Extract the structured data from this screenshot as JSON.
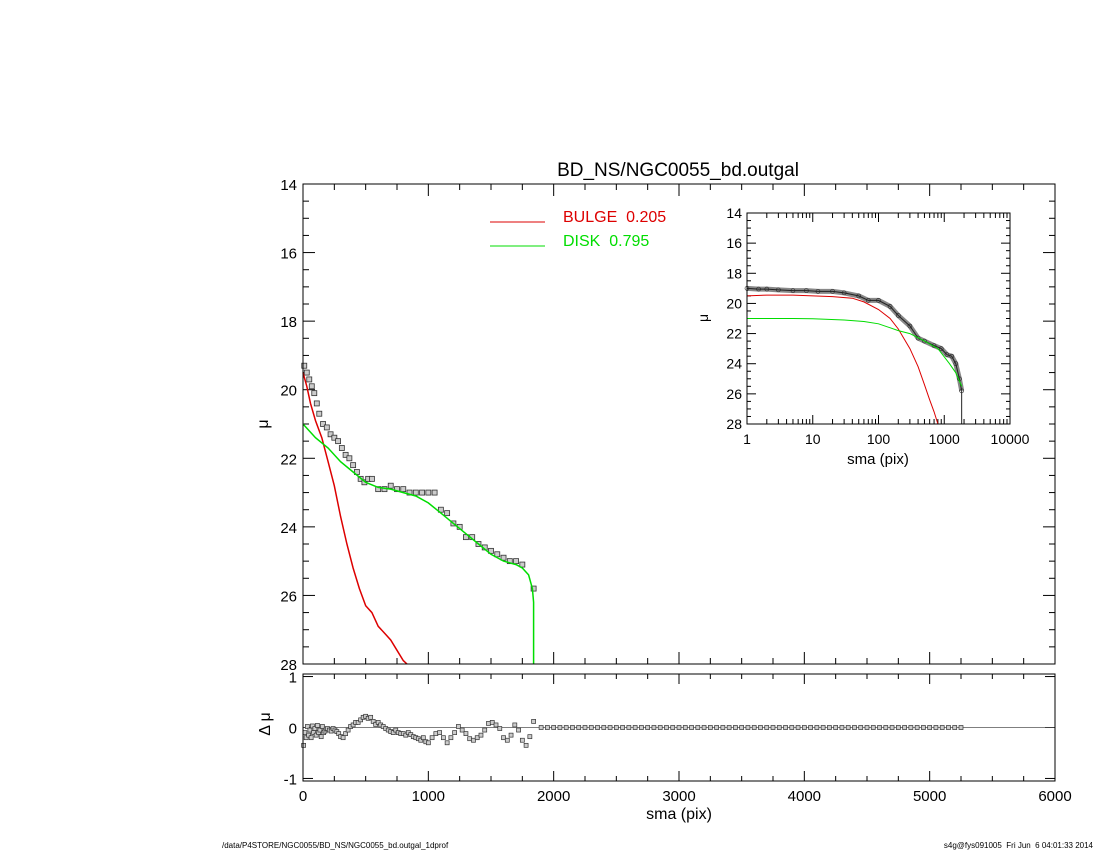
{
  "chart_data": [
    {
      "id": "main",
      "type": "scatter",
      "title": "BD_NS/NGC0055_bd.outgal",
      "xlabel": "",
      "ylabel": "μ",
      "xlim": [
        0,
        6000
      ],
      "ylim": [
        28,
        14
      ],
      "y_inverted": true,
      "y_ticks": [
        "14",
        "16",
        "18",
        "20",
        "22",
        "24",
        "26",
        "28"
      ],
      "legend_position": "top-center",
      "colors": {
        "bulge": "#dd0000",
        "disk": "#00dd00",
        "data": "#555555"
      },
      "series": [
        {
          "name": "BULGE  0.205",
          "kind": "line",
          "color": "#dd0000",
          "x": [
            0,
            30,
            60,
            100,
            150,
            200,
            250,
            300,
            350,
            400,
            450,
            500,
            550,
            600,
            650,
            700,
            750,
            800,
            830
          ],
          "y": [
            19.5,
            19.9,
            20.4,
            20.9,
            21.4,
            22.1,
            22.8,
            23.7,
            24.5,
            25.2,
            25.8,
            26.3,
            26.5,
            26.9,
            27.1,
            27.3,
            27.6,
            27.9,
            28.0
          ]
        },
        {
          "name": "DISK  0.795",
          "kind": "line",
          "color": "#00dd00",
          "x": [
            0,
            100,
            200,
            300,
            400,
            500,
            600,
            700,
            800,
            900,
            1000,
            1100,
            1200,
            1300,
            1400,
            1500,
            1600,
            1700,
            1750,
            1800,
            1830,
            1840,
            1840
          ],
          "y": [
            21.0,
            21.4,
            21.7,
            22.1,
            22.4,
            22.7,
            22.85,
            22.9,
            23.0,
            23.1,
            23.3,
            23.6,
            23.9,
            24.2,
            24.5,
            24.8,
            25.0,
            25.1,
            25.2,
            25.4,
            25.8,
            26.2,
            28.0
          ]
        },
        {
          "name": "",
          "kind": "points",
          "color": "#555555",
          "x": [
            10,
            30,
            50,
            70,
            90,
            110,
            130,
            160,
            190,
            220,
            250,
            280,
            310,
            340,
            370,
            400,
            430,
            460,
            490,
            520,
            550,
            600,
            650,
            700,
            750,
            800,
            850,
            900,
            950,
            1000,
            1050,
            1100,
            1150,
            1200,
            1250,
            1300,
            1350,
            1400,
            1450,
            1500,
            1550,
            1600,
            1650,
            1700,
            1750,
            1840
          ],
          "y": [
            19.3,
            19.5,
            19.7,
            19.9,
            20.1,
            20.4,
            20.7,
            21.0,
            21.1,
            21.3,
            21.4,
            21.5,
            21.7,
            21.9,
            22.0,
            22.2,
            22.4,
            22.6,
            22.7,
            22.6,
            22.6,
            22.9,
            22.9,
            22.8,
            22.9,
            22.9,
            23.0,
            23.0,
            23.0,
            23.0,
            23.0,
            23.5,
            23.6,
            23.9,
            24.0,
            24.3,
            24.3,
            24.5,
            24.6,
            24.7,
            24.8,
            24.9,
            25.0,
            25.0,
            25.1,
            25.8
          ]
        }
      ]
    },
    {
      "id": "residual",
      "type": "scatter",
      "xlabel": "sma (pix)",
      "ylabel": "Δ μ",
      "xlim": [
        0,
        6000
      ],
      "ylim": [
        -1.05,
        1.05
      ],
      "x_ticks": [
        "0",
        "1000",
        "2000",
        "3000",
        "4000",
        "5000",
        "6000"
      ],
      "y_ticks": [
        "1",
        "0",
        "-1"
      ],
      "zero_line": true,
      "series": [
        {
          "name": "",
          "color": "#555555",
          "x": [
            5,
            15,
            25,
            35,
            45,
            55,
            65,
            75,
            85,
            95,
            105,
            115,
            125,
            135,
            145,
            155,
            165,
            175,
            185,
            195,
            210,
            225,
            240,
            255,
            270,
            285,
            300,
            320,
            340,
            360,
            380,
            400,
            420,
            440,
            460,
            480,
            500,
            520,
            540,
            560,
            580,
            600,
            620,
            640,
            660,
            680,
            700,
            720,
            740,
            760,
            780,
            800,
            820,
            840,
            860,
            880,
            900,
            920,
            940,
            960,
            980,
            1000,
            1030,
            1060,
            1090,
            1120,
            1150,
            1180,
            1210,
            1240,
            1270,
            1300,
            1330,
            1360,
            1390,
            1420,
            1450,
            1480,
            1510,
            1540,
            1570,
            1600,
            1630,
            1660,
            1690,
            1720,
            1750,
            1780,
            1810,
            1840
          ],
          "y": [
            -0.35,
            -0.1,
            -0.2,
            0.02,
            -0.15,
            -0.05,
            -0.2,
            0.03,
            -0.1,
            -0.02,
            -0.15,
            0.04,
            -0.1,
            -0.05,
            -0.18,
            0.02,
            -0.1,
            -0.07,
            -0.03,
            -0.02,
            -0.05,
            -0.07,
            -0.02,
            -0.05,
            -0.08,
            -0.12,
            -0.18,
            -0.2,
            -0.12,
            -0.05,
            0.02,
            0.05,
            0.1,
            0.1,
            0.15,
            0.2,
            0.22,
            0.18,
            0.2,
            0.12,
            0.06,
            0.1,
            0.05,
            0.02,
            -0.02,
            -0.05,
            -0.08,
            -0.1,
            -0.05,
            -0.1,
            -0.12,
            -0.12,
            -0.15,
            -0.1,
            -0.14,
            -0.18,
            -0.2,
            -0.22,
            -0.25,
            -0.2,
            -0.28,
            -0.3,
            -0.2,
            -0.12,
            -0.1,
            -0.2,
            -0.3,
            -0.2,
            -0.1,
            0.02,
            -0.05,
            -0.12,
            -0.22,
            -0.25,
            -0.2,
            -0.15,
            -0.05,
            0.08,
            0.1,
            0.05,
            -0.02,
            -0.2,
            -0.25,
            -0.15,
            0.05,
            -0.05,
            -0.25,
            -0.35,
            -0.18,
            0.12
          ]
        },
        {
          "name": "",
          "color": "#555555",
          "x_start": 1900,
          "x_step": 50,
          "x_end": 5250,
          "y_constant": 0
        }
      ]
    },
    {
      "id": "inset",
      "type": "scatter",
      "xlabel": "sma (pix)",
      "ylabel": "μ",
      "x_scale": "log",
      "xlim": [
        1,
        10000
      ],
      "ylim": [
        28,
        14
      ],
      "y_inverted": true,
      "x_ticks": [
        "1",
        "10",
        "100",
        "1000",
        "10000"
      ],
      "y_ticks": [
        "14",
        "16",
        "18",
        "20",
        "22",
        "24",
        "26",
        "28"
      ],
      "series": [
        {
          "name": "BULGE",
          "kind": "line",
          "color": "#dd0000",
          "x": [
            1,
            2,
            5,
            10,
            20,
            40,
            60,
            100,
            150,
            200,
            300,
            400,
            500,
            600,
            700,
            800
          ],
          "y": [
            19.5,
            19.45,
            19.45,
            19.5,
            19.55,
            19.65,
            19.9,
            20.4,
            21.0,
            21.7,
            23.0,
            24.2,
            25.4,
            26.4,
            27.2,
            28.0
          ]
        },
        {
          "name": "DISK",
          "kind": "line",
          "color": "#00dd00",
          "x": [
            1,
            5,
            10,
            30,
            60,
            100,
            200,
            300,
            500,
            800,
            1200,
            1500,
            1840
          ],
          "y": [
            21.0,
            21.0,
            21.02,
            21.1,
            21.2,
            21.35,
            21.8,
            22.0,
            22.5,
            23.0,
            24.0,
            24.6,
            25.5
          ]
        },
        {
          "name": "",
          "kind": "points",
          "color": "#555555",
          "x": [
            1,
            1.5,
            2,
            3,
            5,
            8,
            12,
            20,
            30,
            50,
            70,
            100,
            150,
            200,
            300,
            400,
            500,
            700,
            900,
            1100,
            1300,
            1500,
            1700,
            1840
          ],
          "y": [
            19.0,
            19.05,
            19.05,
            19.1,
            19.15,
            19.15,
            19.2,
            19.2,
            19.3,
            19.5,
            19.8,
            19.8,
            20.2,
            20.8,
            21.5,
            22.3,
            22.5,
            22.8,
            23.0,
            23.4,
            23.5,
            24.0,
            25.0,
            25.8
          ]
        }
      ]
    }
  ],
  "footer": {
    "left": "/data/P4STORE/NGC0055/BD_NS/NGC0055_bd.outgal_1dprof",
    "right": "s4g@fys091005  Fri Jun  6 04:01:33 2014"
  }
}
